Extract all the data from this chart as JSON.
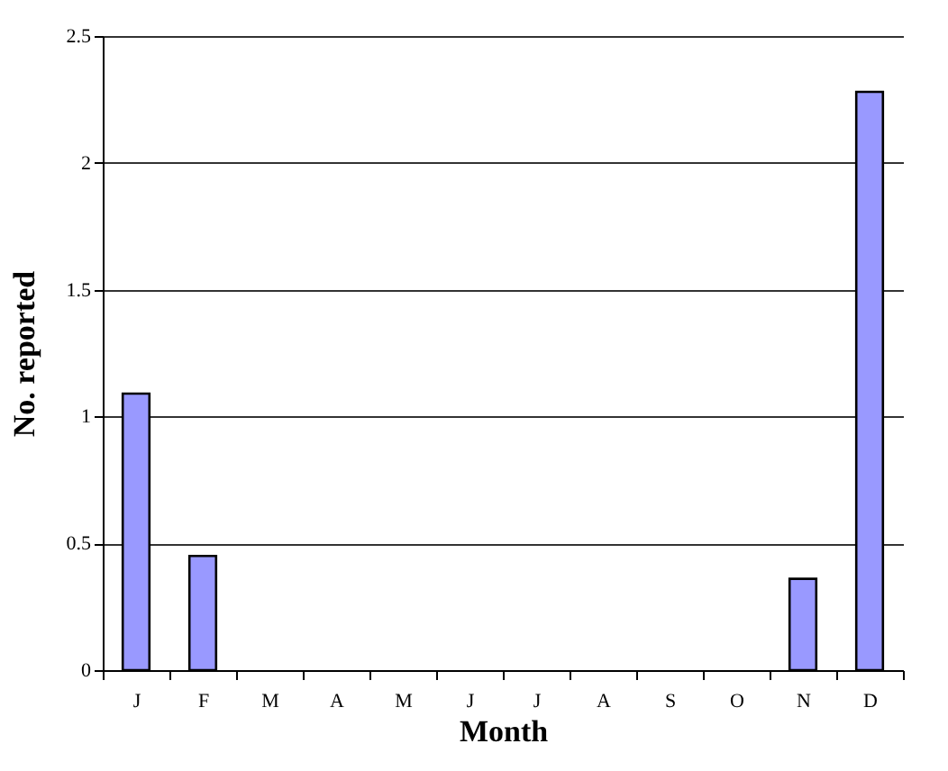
{
  "chart_data": {
    "type": "bar",
    "xlabel": "Month",
    "ylabel": "No. reported",
    "categories": [
      "J",
      "F",
      "M",
      "A",
      "M",
      "J",
      "J",
      "A",
      "S",
      "O",
      "N",
      "D"
    ],
    "values": [
      1.09,
      0.45,
      0,
      0,
      0,
      0,
      0,
      0,
      0,
      0,
      0.36,
      2.28
    ],
    "color": "#9999ff",
    "ylim": [
      0,
      2.5
    ],
    "yticks": [
      0,
      0.5,
      1,
      1.5,
      2,
      2.5
    ],
    "grid": "y"
  }
}
